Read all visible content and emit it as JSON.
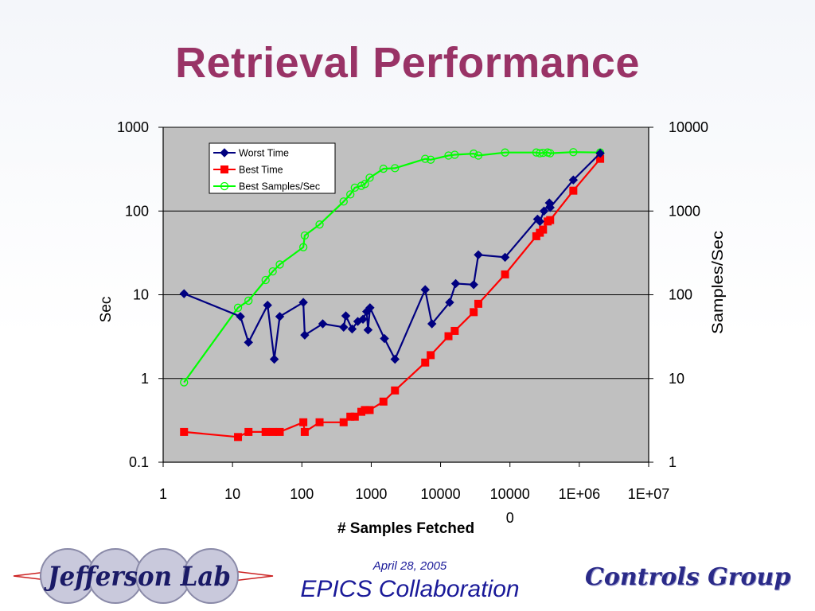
{
  "slide": {
    "title": "Retrieval Performance",
    "footer_date": "April 28, 2005",
    "footer_collab": "EPICS Collaboration",
    "controls_group": "Controls Group",
    "logo_text": "Jefferson Lab"
  },
  "colors": {
    "title": "#993366",
    "plot_bg": "#c0c0c0",
    "worst": "#000080",
    "best": "#ff0000",
    "samples": "#00ff00",
    "footer": "#1a1a99"
  },
  "chart_data": {
    "type": "line",
    "xlabel": "# Samples Fetched",
    "ylabel": "Sec",
    "y2label": "Samples/Sec",
    "xscale": "log",
    "yscale": "log",
    "y2scale": "log",
    "xlim": [
      1,
      10000000
    ],
    "ylim": [
      0.1,
      1000
    ],
    "y2lim": [
      1,
      10000
    ],
    "xtick_labels": [
      "1",
      "10",
      "100",
      "1000",
      "10000",
      "100000",
      "1E+06",
      "1E+07"
    ],
    "ytick_labels": [
      "0.1",
      "1",
      "10",
      "100",
      "1000"
    ],
    "y2tick_labels": [
      "1",
      "10",
      "100",
      "1000",
      "10000"
    ],
    "grid": "horizontal",
    "legend_position": "top-left",
    "series": [
      {
        "name": "Worst Time",
        "axis": "left",
        "marker": "diamond",
        "color": "#000080",
        "points": [
          [
            2,
            10.3
          ],
          [
            13,
            5.5
          ],
          [
            17,
            2.7
          ],
          [
            32,
            7.5
          ],
          [
            40,
            1.7
          ],
          [
            48,
            5.5
          ],
          [
            105,
            8.1
          ],
          [
            110,
            3.3
          ],
          [
            200,
            4.5
          ],
          [
            400,
            4.1
          ],
          [
            430,
            5.6
          ],
          [
            530,
            3.9
          ],
          [
            640,
            4.8
          ],
          [
            760,
            5.1
          ],
          [
            860,
            6.3
          ],
          [
            900,
            3.8
          ],
          [
            960,
            7
          ],
          [
            1550,
            3
          ],
          [
            2200,
            1.7
          ],
          [
            6000,
            11.5
          ],
          [
            7500,
            4.5
          ],
          [
            13500,
            8.1
          ],
          [
            16500,
            13.6
          ],
          [
            30000,
            13.2
          ],
          [
            35000,
            30
          ],
          [
            85000,
            28
          ],
          [
            250000,
            80
          ],
          [
            270000,
            75
          ],
          [
            310000,
            100
          ],
          [
            370000,
            125
          ],
          [
            380000,
            110
          ],
          [
            820000,
            235
          ],
          [
            2000000,
            490
          ]
        ]
      },
      {
        "name": "Best Time",
        "axis": "left",
        "marker": "square",
        "color": "#ff0000",
        "points": [
          [
            2,
            0.23
          ],
          [
            12,
            0.2
          ],
          [
            17,
            0.23
          ],
          [
            30,
            0.23
          ],
          [
            38,
            0.23
          ],
          [
            48,
            0.23
          ],
          [
            105,
            0.3
          ],
          [
            110,
            0.23
          ],
          [
            180,
            0.3
          ],
          [
            400,
            0.3
          ],
          [
            500,
            0.35
          ],
          [
            580,
            0.35
          ],
          [
            720,
            0.4
          ],
          [
            810,
            0.42
          ],
          [
            950,
            0.42
          ],
          [
            1500,
            0.53
          ],
          [
            2200,
            0.72
          ],
          [
            6000,
            1.55
          ],
          [
            7200,
            1.9
          ],
          [
            13000,
            3.2
          ],
          [
            16000,
            3.7
          ],
          [
            30000,
            6.2
          ],
          [
            35000,
            7.8
          ],
          [
            85000,
            17.5
          ],
          [
            240000,
            50
          ],
          [
            270000,
            55
          ],
          [
            300000,
            60
          ],
          [
            350000,
            75
          ],
          [
            380000,
            78
          ],
          [
            820000,
            175
          ],
          [
            2000000,
            420
          ]
        ]
      },
      {
        "name": "Best Samples/Sec",
        "axis": "right",
        "marker": "circle",
        "color": "#00ff00",
        "points": [
          [
            2,
            9
          ],
          [
            12,
            70
          ],
          [
            17,
            85
          ],
          [
            30,
            150
          ],
          [
            38,
            190
          ],
          [
            48,
            230
          ],
          [
            105,
            370
          ],
          [
            110,
            510
          ],
          [
            180,
            690
          ],
          [
            400,
            1300
          ],
          [
            500,
            1580
          ],
          [
            580,
            1900
          ],
          [
            720,
            2000
          ],
          [
            810,
            2100
          ],
          [
            950,
            2500
          ],
          [
            1500,
            3200
          ],
          [
            2200,
            3250
          ],
          [
            6000,
            4200
          ],
          [
            7200,
            4100
          ],
          [
            13000,
            4600
          ],
          [
            16000,
            4700
          ],
          [
            30000,
            4850
          ],
          [
            35000,
            4600
          ],
          [
            85000,
            5000
          ],
          [
            240000,
            5000
          ],
          [
            270000,
            4900
          ],
          [
            300000,
            4950
          ],
          [
            350000,
            5000
          ],
          [
            380000,
            4900
          ],
          [
            820000,
            5050
          ],
          [
            2000000,
            5000
          ]
        ]
      }
    ]
  }
}
